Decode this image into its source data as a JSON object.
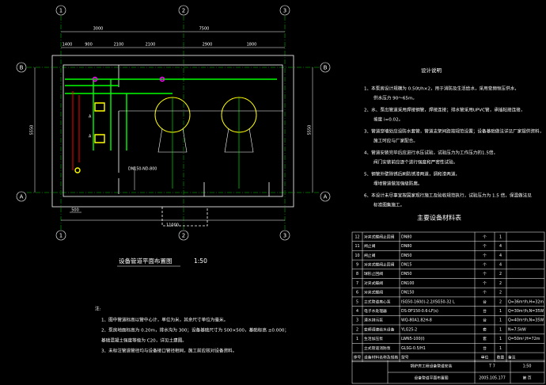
{
  "plan": {
    "title": "设备管道平面布置图",
    "scale": "1:50",
    "dims_top": [
      "3000",
      "7500"
    ],
    "dims_second": [
      "1400",
      "900",
      "2100",
      "2100",
      "2900",
      "1800"
    ],
    "dim_left": "5550",
    "dim_right": "5550",
    "dim_bottom": "11000",
    "dim_bottom_small": "500",
    "axes_x": [
      "1",
      "2",
      "3"
    ],
    "axes_y": [
      "B",
      "A"
    ],
    "labels": [
      "DN150-ND-800",
      "A",
      "A"
    ]
  },
  "design_notes": {
    "title": "设计说明",
    "items": [
      [
        "1、本泵房设计规模为 0.50t/h×2，用于消防及生活给水，采用变频恒压供水，",
        "供水压力 90～65m。"
      ],
      [
        "2、水、泵出管道采用焊接钢管，焊接连接；排水管采用UPVC管，承插粘接连接，",
        "坡度 i=0.02。"
      ],
      [
        "3、管道穿墙处应设防水套管，管道支架间距按规范设置；设备基础做法详见厂家提供资料，",
        "施工时应与厂家配合。"
      ],
      [
        "4、管道安装完毕后应进行水压试验，试验压力为工作压力的1.5倍，",
        "阀门安装前应逐个进行强度和严密性试验。"
      ],
      [
        "5、钢管外壁除锈后刷防锈漆两道，调和漆两道，",
        "埋地管道做加强级防腐。"
      ],
      [
        "6、本设计未尽事宜按国家现行施工及验收规范执行，试验压力为 1.5 倍，保温做法见",
        "标准图集施工。"
      ]
    ]
  },
  "notes": {
    "title": "注:",
    "items": [
      "1、图中管道标高以管中心计，单位为米，其余尺寸单位为毫米。",
      "2、泵房地面标高为 0.20m，排水沟为 300；设备基础尺寸为 500×500，基础标高 ±0.000；",
      "    基础混凝土强度等级为 C20，详见土建图。",
      "3、未标注管道管径均与设备接口管径相同，施工前应核对设备资料。"
    ]
  },
  "table": {
    "title": "主要设备材料表",
    "header": [
      "序号",
      "设备材料名称及规格",
      "型号",
      "单位",
      "数量",
      "备注"
    ],
    "rows": [
      [
        "12",
        "对夹式蝶阀止回阀",
        "DN80",
        "个",
        "1"
      ],
      [
        "11",
        "闸止阀",
        "DN80",
        "个",
        "4"
      ],
      [
        "10",
        "闸止阀",
        "DN50",
        "个",
        "4"
      ],
      [
        "9",
        "对夹式蝶阀止回阀",
        "DN15",
        "个",
        "4"
      ],
      [
        "8",
        "球形止回阀",
        "DN50",
        "个",
        "2"
      ],
      [
        "7",
        "对夹式蝶阀",
        "DN100",
        "个",
        "2"
      ],
      [
        "6",
        "对夹式蝶阀",
        "DN150",
        "个",
        "2"
      ],
      [
        "5",
        "立式管道离心泵",
        "ISG50-160(I)-2.2/ISG50-32 L",
        "台",
        "2",
        "Q=36m³/h,H=32m"
      ],
      [
        "4",
        "电子水处理器",
        "DS-DF150-0.6-LF(s)",
        "台",
        "1",
        "Q=30m³/h,N=35W"
      ],
      [
        "3",
        "潜水排污泵",
        "WQ-80A1.82H-8",
        "台",
        "1",
        "Q=40m³/h,N=35W"
      ],
      [
        "2",
        "变频调速给水设备",
        "YLG25-2",
        "套",
        "1",
        "N=7.5kW"
      ],
      [
        "1",
        "生活加压泵",
        "LWN5-100(I)",
        "套",
        "1",
        "Q=50m³,H=72m"
      ],
      [
        "",
        "立式管道消防泵",
        "GLSG-0.5/H1",
        "台",
        "1"
      ]
    ]
  },
  "title_block": {
    "project": "锅炉房工程设备管道安装",
    "drawing": "设备管道平面布置图",
    "sheet": "T 7",
    "scale": "1:50",
    "number": "2005.105.177",
    "page": "第 页"
  }
}
